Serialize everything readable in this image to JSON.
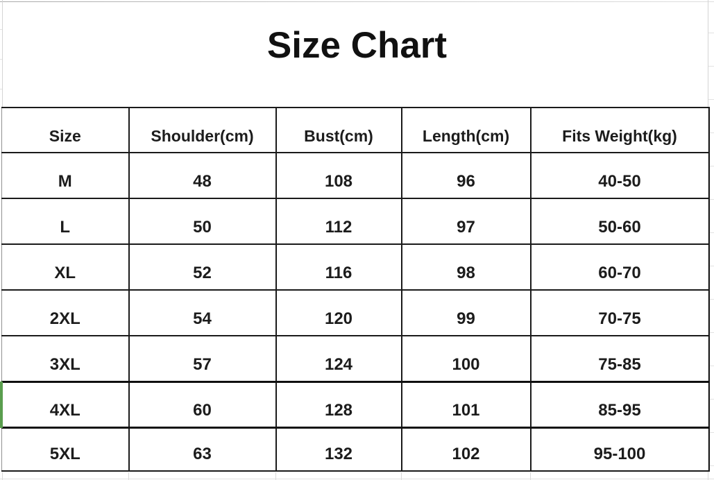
{
  "title": "Size Chart",
  "chart_data": {
    "type": "table",
    "title": "Size Chart",
    "columns": [
      "Size",
      "Shoulder(cm)",
      "Bust(cm)",
      "Length(cm)",
      "Fits Weight(kg)"
    ],
    "rows": [
      [
        "M",
        "48",
        "108",
        "96",
        "40-50"
      ],
      [
        "L",
        "50",
        "112",
        "97",
        "50-60"
      ],
      [
        "XL",
        "52",
        "116",
        "98",
        "60-70"
      ],
      [
        "2XL",
        "54",
        "120",
        "99",
        "70-75"
      ],
      [
        "3XL",
        "57",
        "124",
        "100",
        "75-85"
      ],
      [
        "4XL",
        "60",
        "128",
        "101",
        "85-95"
      ],
      [
        "5XL",
        "63",
        "132",
        "102",
        "95-100"
      ]
    ],
    "selected_row": "4XL"
  },
  "colors": {
    "selection_green": "#5a9e4e",
    "table_border": "#1a1a1a",
    "gridline": "#dcdcdc",
    "text": "#1c1c1c"
  }
}
